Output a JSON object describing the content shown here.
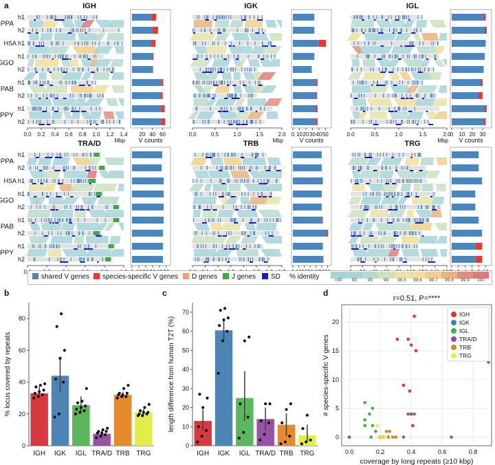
{
  "panel_letters": {
    "a": "a",
    "b": "b",
    "c": "c",
    "d": "d"
  },
  "alignment_panels": [
    {
      "title": "IGH",
      "rows": [
        "h1",
        "h2",
        "HSA h1",
        "h1",
        "h2",
        "h1",
        "h2",
        "h1",
        "h2"
      ],
      "xticks": [
        "0.0",
        "0.2",
        "0.4",
        "0.6",
        "0.8",
        "1.0",
        "1.2",
        "1.4"
      ],
      "xunit": "Mbp"
    },
    {
      "title": "IGK",
      "rows": [],
      "xticks": [
        "0.0",
        "0.5",
        "1.0",
        "1.5",
        "2.0"
      ],
      "xunit": "Mbp"
    },
    {
      "title": "IGL",
      "rows": [],
      "xticks": [
        "0.0",
        "0.5",
        "1.0",
        "1.5",
        "2.0"
      ],
      "xunit": "Mbp"
    },
    {
      "title": "TRA/D",
      "rows": [
        "h1",
        "h2",
        "HSA h1",
        "h1",
        "h2",
        "h1",
        "h2",
        "h1",
        "h2"
      ],
      "xticks": [
        "0.0",
        "0.2",
        "0.4",
        "0.6",
        "0.8",
        "1.0"
      ],
      "xunit": "Mbp"
    },
    {
      "title": "TRB",
      "rows": [],
      "xticks": [
        "0.0",
        "0.1",
        "0.2",
        "0.3",
        "0.4",
        "0.5",
        "0.6",
        "0.7"
      ],
      "xunit": "Mbp"
    },
    {
      "title": "TRG",
      "rows": [],
      "xticks": [
        "0",
        "20",
        "40",
        "60",
        "80",
        "100",
        "120",
        "140",
        "160"
      ],
      "xunit": "kbp"
    }
  ],
  "species": [
    "PPA",
    "HSA",
    "GGO",
    "PAB",
    "PPY"
  ],
  "vcount_panels": [
    {
      "locus": "IGH",
      "xticks": [
        "20",
        "40",
        "60"
      ],
      "xlabel": "V counts",
      "xmax": 70,
      "shared": [
        38,
        40,
        37,
        40,
        39,
        57,
        56,
        57,
        57
      ],
      "specific": [
        9,
        11,
        9,
        2,
        2,
        4,
        4,
        7,
        8
      ]
    },
    {
      "locus": "IGK",
      "xticks": [
        "0",
        "10",
        "20",
        "30",
        "40",
        "50"
      ],
      "xlabel": "V counts",
      "xmax": 55,
      "shared": [
        33,
        33,
        40,
        33,
        29,
        36,
        35,
        35,
        35
      ],
      "specific": [
        0,
        0,
        11,
        0,
        0,
        2,
        2,
        3,
        3
      ]
    },
    {
      "locus": "IGL",
      "xticks": [
        "0",
        "10",
        "20",
        "30"
      ],
      "xlabel": "V counts",
      "xmax": 36,
      "shared": [
        31,
        32,
        33,
        32,
        31,
        28,
        26,
        32,
        31
      ],
      "specific": [
        2,
        2,
        0,
        0,
        0,
        2,
        4,
        2,
        2
      ]
    },
    {
      "locus": "TRA/D",
      "xticks": [
        "0",
        "10",
        "20",
        "30",
        "40",
        "50"
      ],
      "xlabel": "V counts",
      "xmax": 52,
      "shared": [
        44,
        43,
        46,
        46,
        46,
        46,
        45,
        45,
        45
      ],
      "specific": [
        0,
        0,
        0,
        0,
        0,
        0,
        0,
        0,
        0
      ]
    },
    {
      "locus": "TRB",
      "xticks": [
        "0",
        "10",
        "20",
        "30",
        "40",
        "50",
        "60"
      ],
      "xlabel": "V counts",
      "xmax": 62,
      "shared": [
        50,
        50,
        52,
        50,
        50,
        51,
        58,
        52,
        52
      ],
      "specific": [
        0,
        0,
        0,
        0,
        0,
        1,
        3,
        0,
        1
      ]
    },
    {
      "locus": "TRG",
      "xticks": [
        "0",
        "2",
        "4",
        "6",
        "8",
        "10"
      ],
      "xlabel": "V counts",
      "xmax": 11,
      "shared": [
        8,
        8,
        9,
        7,
        7,
        8,
        9,
        7,
        7
      ],
      "specific": [
        0,
        0,
        0,
        0,
        0,
        0,
        0,
        2,
        2
      ]
    }
  ],
  "legend": {
    "items": [
      {
        "label": "shared V genes",
        "color": "#4a86c0"
      },
      {
        "label": "species-specific V genes",
        "color": "#e83a35"
      },
      {
        "label": "D genes",
        "color": "#f0a070"
      },
      {
        "label": "J genes",
        "color": "#3da83d"
      },
      {
        "label": "SD",
        "color": "#1a1acc"
      }
    ],
    "identity_label": "% identity",
    "identity_ticks": [
      "<90",
      "90",
      "95",
      "99",
      "99.5",
      "99.6",
      "99.7",
      "99.8",
      "99.9",
      "100"
    ],
    "identity_colors": [
      "#a6d3d8",
      "#a8d5d6",
      "#b8dbd0",
      "#cde2bd",
      "#e8e3a7",
      "#f2de9a",
      "#f1cf8a",
      "#eab37c",
      "#e58c80",
      "#e07a7a"
    ]
  },
  "chart_data": [
    {
      "type": "bar",
      "title": "",
      "ylabel": "% locus covered by repeats",
      "xlabel": "",
      "ylim": [
        0,
        90
      ],
      "yticks": [
        "0",
        "20",
        "40",
        "60",
        "80"
      ],
      "categories": [
        "IGH",
        "IGK",
        "IGL",
        "TRA/D",
        "TRB",
        "TRG"
      ],
      "values": [
        33,
        44,
        25.5,
        7.5,
        32,
        21
      ],
      "error_low": [
        30,
        34,
        21,
        5.5,
        30,
        19.5
      ],
      "error_high": [
        37,
        54.5,
        31,
        9.5,
        34,
        23
      ],
      "colors": [
        "#d63a40",
        "#4d86b6",
        "#5cb65c",
        "#9752a6",
        "#e68a2e",
        "#e1ee4a"
      ],
      "points": [
        [
          30,
          31,
          32,
          33,
          34,
          35,
          37,
          38,
          39
        ],
        [
          18,
          20,
          40,
          42,
          55,
          60,
          75,
          83
        ],
        [
          20,
          21,
          22,
          23,
          24,
          25,
          27,
          28,
          36
        ],
        [
          5,
          6,
          7,
          8,
          8,
          9,
          9,
          10,
          11
        ],
        [
          30,
          31,
          31,
          32,
          32,
          33,
          33,
          36,
          38
        ],
        [
          19,
          19,
          20,
          20,
          21,
          21,
          22,
          24,
          26
        ]
      ]
    },
    {
      "type": "bar",
      "title": "",
      "ylabel": "length difference from human T2T (%)",
      "xlabel": "",
      "ylim": [
        0,
        75
      ],
      "yticks": [
        "0",
        "10",
        "20",
        "30",
        "40",
        "50",
        "60",
        "70"
      ],
      "categories": [
        "IGH",
        "IGK",
        "IGL",
        "TRA/D",
        "TRB",
        "TRG"
      ],
      "values": [
        13,
        60.5,
        25,
        14,
        11,
        5.5
      ],
      "error_low": [
        8,
        55,
        13,
        8,
        5,
        2
      ],
      "error_high": [
        19,
        66,
        39,
        20,
        17,
        11
      ],
      "colors": [
        "#d63a40",
        "#4d86b6",
        "#5cb65c",
        "#9752a6",
        "#e68a2e",
        "#e1ee4a"
      ],
      "points": [
        [
          2,
          5,
          8,
          10,
          20,
          25,
          27
        ],
        [
          38,
          55,
          60,
          63,
          66,
          67,
          71,
          72
        ],
        [
          4,
          7,
          15,
          22,
          55,
          57
        ],
        [
          3,
          6,
          12,
          13,
          22,
          22
        ],
        [
          1,
          2,
          5,
          12,
          19,
          22
        ],
        [
          1,
          2,
          3,
          9,
          16
        ]
      ]
    },
    {
      "type": "scatter",
      "title": "r=0.51, P=****",
      "xlabel": "coverage by long repeats (≥10 kbp)",
      "ylabel": "# species-specific V genes",
      "xlim": [
        -0.05,
        0.92
      ],
      "ylim": [
        -1.5,
        23
      ],
      "xticks": [
        "0.0",
        "0.2",
        "0.4",
        "0.6",
        "0.8"
      ],
      "yticks": [
        "0",
        "5",
        "10",
        "15",
        "20"
      ],
      "legend_position": "top-right",
      "series": [
        {
          "name": "IGH",
          "color": "#e8302a",
          "x": [
            0.42,
            0.31,
            0.38,
            0.4,
            0.43,
            0.35,
            0.39,
            0.4,
            0.41
          ],
          "y": [
            21,
            17,
            17,
            16,
            15,
            9,
            8,
            4,
            2
          ]
        },
        {
          "name": "IGK",
          "color": "#3b7fb8",
          "x": [
            0.9,
            0.38,
            0.42,
            0.66,
            0.3,
            0.35
          ],
          "y": [
            13,
            4,
            4,
            0,
            0,
            0
          ]
        },
        {
          "name": "IGL",
          "color": "#3cb44b",
          "x": [
            0.1,
            0.15,
            0.13,
            0.1,
            0.15,
            0.1,
            0.17,
            0.14,
            0.22
          ],
          "y": [
            6,
            5,
            4,
            3,
            2,
            2,
            1,
            0,
            0
          ]
        },
        {
          "name": "TRA/D",
          "color": "#8c4aa0",
          "x": [
            0.0,
            0.2,
            0.25
          ],
          "y": [
            0,
            0,
            0
          ]
        },
        {
          "name": "TRB",
          "color": "#cd8a2c",
          "x": [
            0.24,
            0.26,
            0.22,
            0.28,
            0.3
          ],
          "y": [
            1,
            1,
            0,
            0,
            0
          ]
        },
        {
          "name": "TRG",
          "color": "#e4ee44",
          "x": [
            0.18,
            0.19,
            0.21,
            0.23,
            0.24
          ],
          "y": [
            2,
            0,
            0,
            0,
            0
          ]
        }
      ]
    }
  ]
}
